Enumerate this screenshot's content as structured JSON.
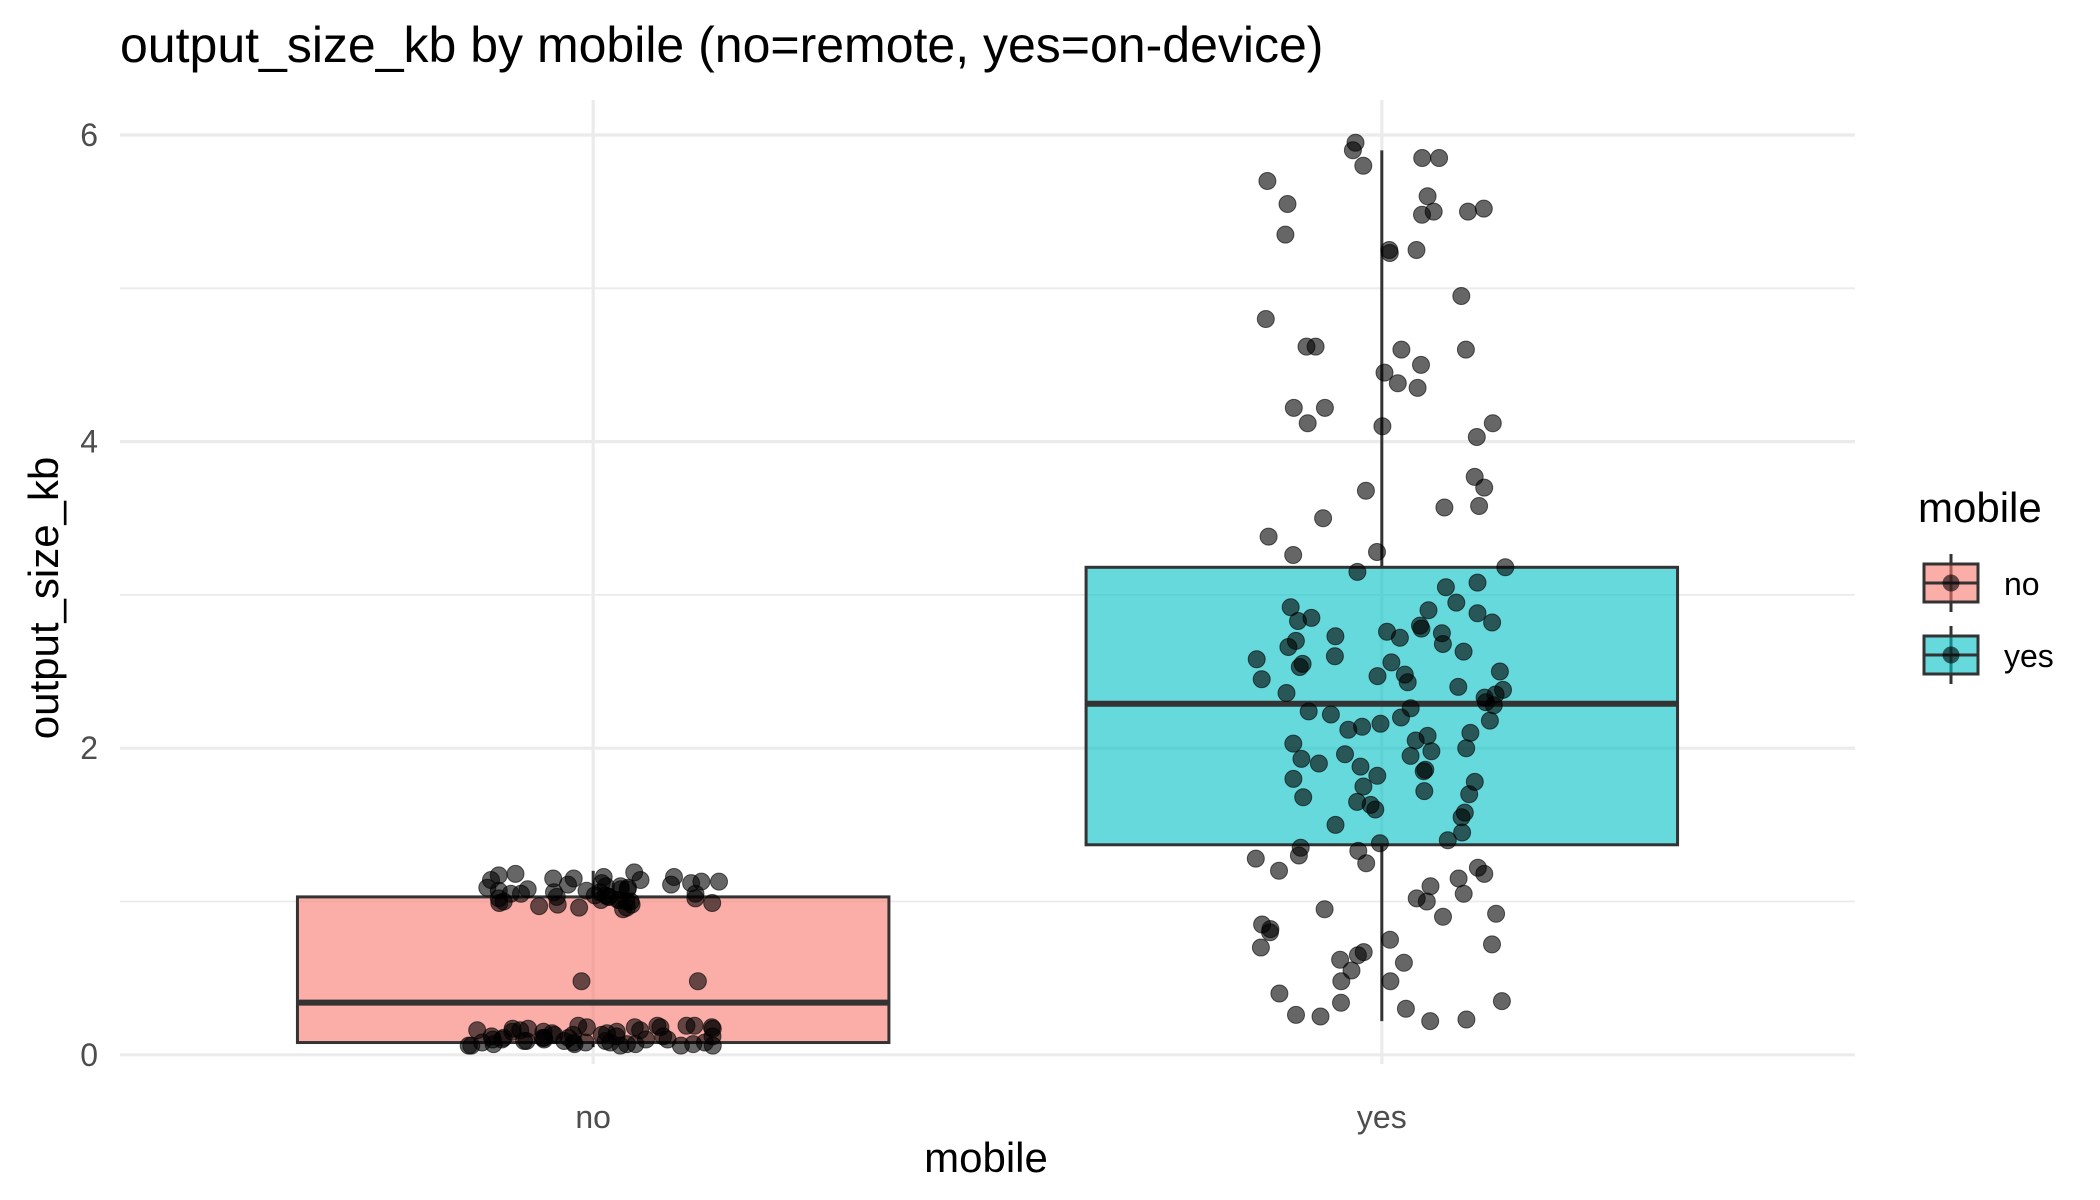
{
  "chart_data": {
    "type": "box",
    "title": "output_size_kb by mobile (no=remote, yes=on-device)",
    "xlabel": "mobile",
    "ylabel": "output_size_kb",
    "categories": [
      "no",
      "yes"
    ],
    "ylim": [
      -0.06,
      6.15
    ],
    "y_ticks": [
      0,
      2,
      4,
      6
    ],
    "grid": true,
    "legend": {
      "title": "mobile",
      "position": "right",
      "entries": [
        {
          "label": "no",
          "color": "#F8766D"
        },
        {
          "label": "yes",
          "color": "#00BFC4"
        }
      ]
    },
    "boxes": [
      {
        "category": "no",
        "color": "#F8766D",
        "q1": 0.08,
        "median": 0.34,
        "q3": 1.03,
        "whisker_low": 0.05,
        "whisker_high": 1.2
      },
      {
        "category": "yes",
        "color": "#00BFC4",
        "q1": 1.37,
        "median": 2.29,
        "q3": 3.18,
        "whisker_low": 0.22,
        "whisker_high": 5.9
      }
    ],
    "points": [
      {
        "category": "no",
        "values": [
          1.12,
          1.05,
          1.1,
          1.01,
          0.98,
          1.15,
          1.08,
          1.03,
          0.96,
          1.18,
          1.0,
          1.07,
          1.13,
          0.99,
          1.04,
          1.09,
          1.16,
          1.02,
          0.97,
          1.11,
          1.06,
          1.14,
          1.01,
          1.19,
          0.95,
          1.08,
          1.03,
          1.12,
          1.0,
          1.05,
          1.1,
          0.98,
          1.15,
          1.07,
          1.02,
          1.17,
          1.04,
          0.99,
          1.13,
          1.06,
          1.09,
          1.01,
          1.11,
          0.96,
          1.16,
          1.03,
          1.08,
          1.0,
          1.14,
          1.05,
          0.48,
          0.48,
          0.19,
          0.08,
          0.12,
          0.18,
          0.07,
          0.1,
          0.15,
          0.06,
          0.09,
          0.17,
          0.11,
          0.08,
          0.13,
          0.19,
          0.07,
          0.1,
          0.16,
          0.06,
          0.12,
          0.18,
          0.09,
          0.14,
          0.07,
          0.11,
          0.19,
          0.08,
          0.15,
          0.1,
          0.06,
          0.17,
          0.13,
          0.09,
          0.18,
          0.07,
          0.12,
          0.16,
          0.08,
          0.11,
          0.14,
          0.06,
          0.19,
          0.1,
          0.15,
          0.07,
          0.13,
          0.09,
          0.17,
          0.08,
          0.12,
          0.18,
          0.06,
          0.11,
          0.16,
          0.1
        ]
      },
      {
        "category": "yes",
        "values": [
          5.95,
          5.85,
          5.9,
          5.7,
          5.8,
          5.85,
          5.6,
          5.55,
          5.5,
          5.5,
          5.48,
          5.52,
          5.25,
          5.25,
          5.23,
          5.35,
          4.95,
          4.8,
          4.62,
          4.62,
          4.6,
          4.6,
          4.45,
          4.5,
          4.38,
          4.35,
          4.22,
          4.22,
          4.12,
          4.1,
          4.12,
          4.03,
          3.77,
          3.7,
          3.68,
          3.58,
          3.57,
          3.5,
          3.38,
          3.28,
          3.26,
          3.18,
          3.15,
          3.08,
          3.05,
          2.95,
          2.92,
          2.9,
          2.88,
          2.85,
          2.83,
          2.82,
          2.8,
          2.78,
          2.76,
          2.75,
          2.73,
          2.72,
          2.7,
          2.68,
          2.66,
          2.63,
          2.6,
          2.58,
          2.56,
          2.55,
          2.53,
          2.5,
          2.48,
          2.47,
          2.45,
          2.43,
          2.4,
          2.38,
          2.36,
          2.35,
          2.33,
          2.3,
          2.28,
          2.26,
          2.24,
          2.22,
          2.2,
          2.18,
          2.16,
          2.14,
          2.12,
          2.1,
          2.08,
          2.05,
          2.03,
          2.0,
          1.98,
          1.96,
          1.95,
          1.93,
          1.9,
          1.88,
          1.86,
          1.85,
          1.82,
          1.8,
          1.78,
          1.75,
          1.72,
          1.7,
          1.68,
          1.65,
          1.63,
          1.6,
          1.58,
          1.55,
          1.5,
          1.45,
          1.4,
          1.38,
          1.35,
          1.33,
          1.3,
          1.28,
          1.25,
          1.22,
          1.2,
          1.18,
          1.15,
          1.1,
          1.05,
          1.02,
          1.0,
          0.95,
          0.92,
          0.9,
          0.85,
          0.82,
          0.8,
          0.75,
          0.72,
          0.7,
          0.67,
          0.65,
          0.62,
          0.6,
          0.55,
          0.48,
          0.48,
          0.4,
          0.35,
          0.34,
          0.3,
          0.26,
          0.25,
          0.23,
          0.22
        ]
      }
    ]
  }
}
